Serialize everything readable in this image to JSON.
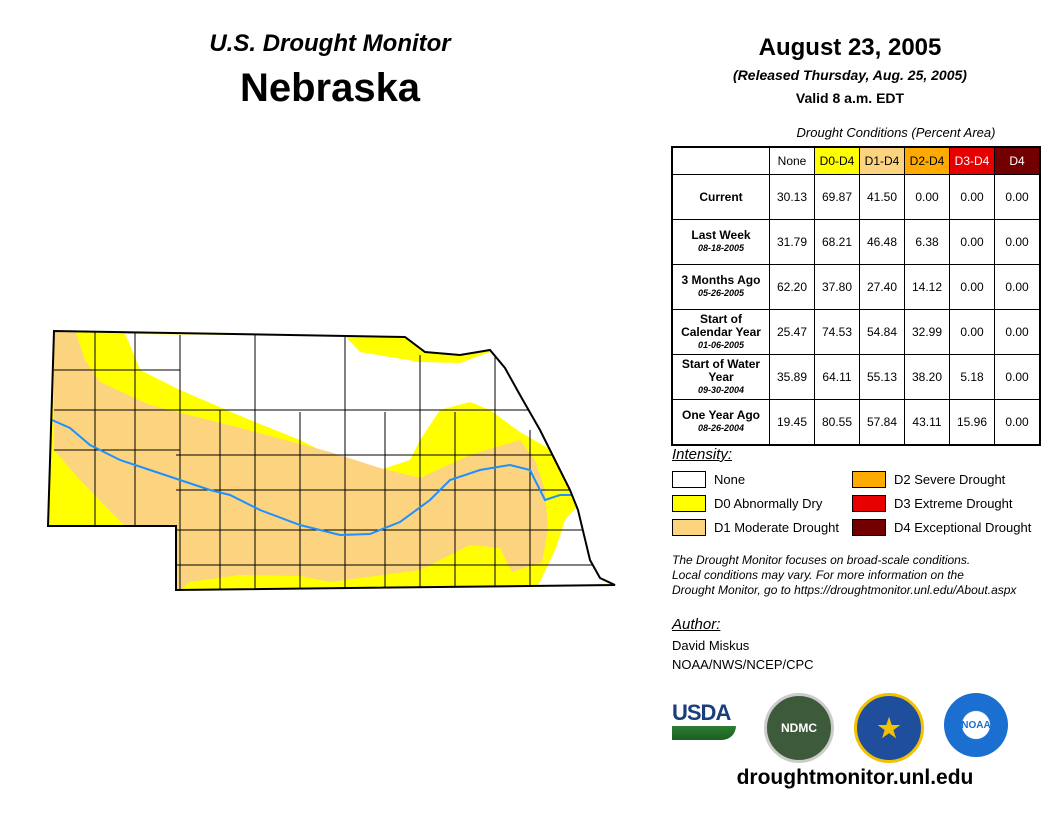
{
  "header": {
    "title": "U.S. Drought Monitor",
    "state": "Nebraska",
    "date": "August 23, 2005",
    "released": "(Released Thursday, Aug. 25, 2005)",
    "valid": "Valid 8 a.m. EDT"
  },
  "table": {
    "caption": "Drought Conditions (Percent Area)",
    "columns": [
      {
        "label": "None",
        "bg": "#ffffff",
        "fg": "#000000"
      },
      {
        "label": "D0-D4",
        "bg": "#ffff00",
        "fg": "#000000"
      },
      {
        "label": "D1-D4",
        "bg": "#fcd37f",
        "fg": "#000000"
      },
      {
        "label": "D2-D4",
        "bg": "#ffaa00",
        "fg": "#000000"
      },
      {
        "label": "D3-D4",
        "bg": "#e60000",
        "fg": "#ffffff"
      },
      {
        "label": "D4",
        "bg": "#730000",
        "fg": "#ffffff"
      }
    ],
    "rows": [
      {
        "label": "Current",
        "date": "",
        "values": [
          "30.13",
          "69.87",
          "41.50",
          "0.00",
          "0.00",
          "0.00"
        ]
      },
      {
        "label": "Last Week",
        "date": "08-18-2005",
        "values": [
          "31.79",
          "68.21",
          "46.48",
          "6.38",
          "0.00",
          "0.00"
        ]
      },
      {
        "label": "3 Months Ago",
        "date": "05-26-2005",
        "values": [
          "62.20",
          "37.80",
          "27.40",
          "14.12",
          "0.00",
          "0.00"
        ]
      },
      {
        "label": "Start of Calendar Year",
        "date": "01-06-2005",
        "values": [
          "25.47",
          "74.53",
          "54.84",
          "32.99",
          "0.00",
          "0.00"
        ]
      },
      {
        "label": "Start of Water Year",
        "date": "09-30-2004",
        "values": [
          "35.89",
          "64.11",
          "55.13",
          "38.20",
          "5.18",
          "0.00"
        ]
      },
      {
        "label": "One Year Ago",
        "date": "08-26-2004",
        "values": [
          "19.45",
          "80.55",
          "57.84",
          "43.11",
          "15.96",
          "0.00"
        ]
      }
    ]
  },
  "legend": {
    "title": "Intensity:",
    "items": [
      {
        "label": "None",
        "color": "#ffffff"
      },
      {
        "label": "D0 Abnormally Dry",
        "color": "#ffff00"
      },
      {
        "label": "D1 Moderate Drought",
        "color": "#fcd37f"
      },
      {
        "label": "D2 Severe Drought",
        "color": "#ffaa00"
      },
      {
        "label": "D3 Extreme Drought",
        "color": "#e60000"
      },
      {
        "label": "D4 Exceptional Drought",
        "color": "#730000"
      }
    ]
  },
  "note": [
    "The Drought Monitor focuses on broad-scale conditions.",
    "Local conditions may vary. For more information on the",
    "Drought Monitor, go to https://droughtmonitor.unl.edu/About.aspx"
  ],
  "author": {
    "label": "Author:",
    "name": "David Miskus",
    "org": "NOAA/NWS/NCEP/CPC"
  },
  "logos": {
    "usda": "USDA",
    "ndmc": "NDMC",
    "noaa": "NOAA"
  },
  "footer_url": "droughtmonitor.unl.edu"
}
